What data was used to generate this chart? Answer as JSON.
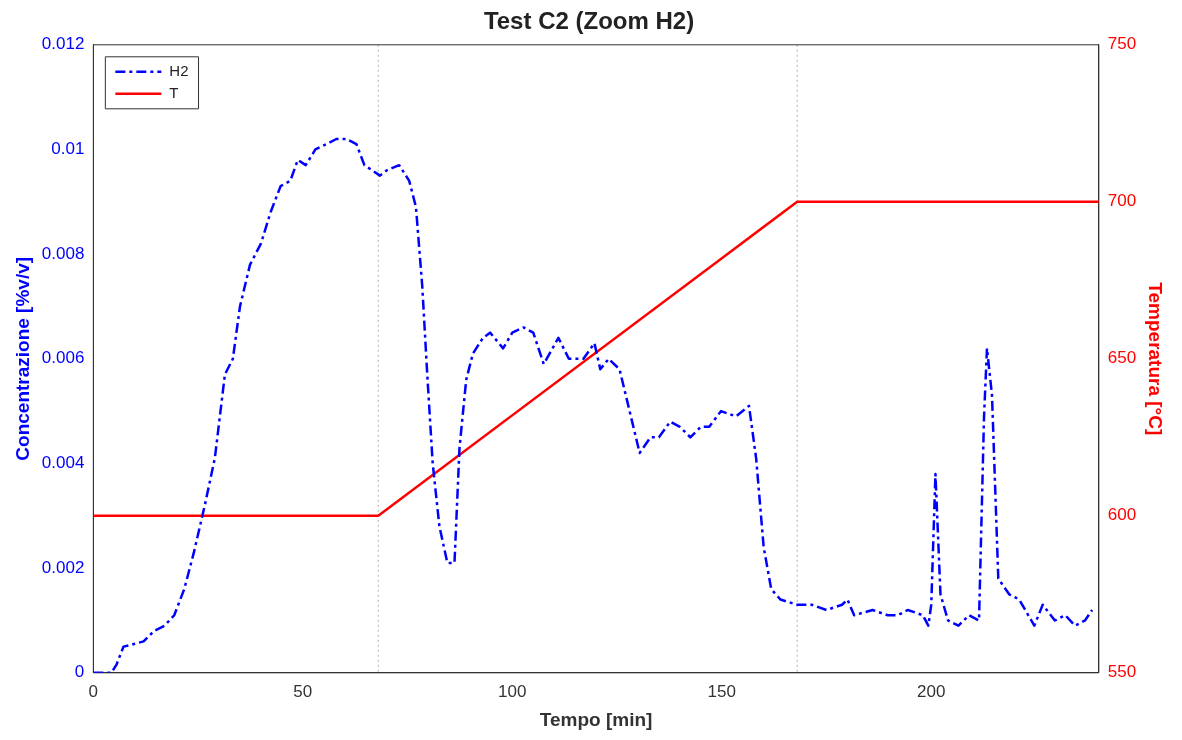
{
  "chart_data": {
    "type": "line",
    "title": "Test C2 (Zoom H2)",
    "xlabel": "Tempo [min]",
    "ylabel": "Concentrazione [%v/v]",
    "y2label": "Temperatura [°C]",
    "xlim": [
      0,
      240
    ],
    "xticks": [
      0,
      50,
      100,
      150,
      200
    ],
    "ylim": [
      0,
      0.012
    ],
    "yticks": [
      0,
      0.002,
      0.004,
      0.006,
      0.008,
      0.01,
      0.012
    ],
    "y2lim": [
      550,
      750
    ],
    "y2ticks": [
      550,
      600,
      650,
      700,
      750
    ],
    "grid": false,
    "legend": "top left",
    "marker": "none",
    "ref_lines": [
      {
        "axis": "x",
        "value": 68,
        "color": "#b0b0b0",
        "line_style": "dotted"
      },
      {
        "axis": "x",
        "value": 168,
        "color": "#b0b0b0",
        "line_style": "dotted"
      }
    ],
    "series": [
      {
        "name": "H2",
        "color": "#0000ff",
        "line_style": "dashed",
        "x": [
          0,
          4.3,
          5.5,
          7.2,
          9.7,
          12,
          14.5,
          17,
          19.3,
          21.7,
          24,
          26.6,
          29,
          31.4,
          33.3,
          35,
          37.4,
          40,
          42.3,
          44.7,
          47,
          48.8,
          50.7,
          53,
          55.6,
          58,
          60.4,
          62.8,
          64.7,
          68.4,
          70,
          73,
          75.4,
          77,
          78.5,
          79.7,
          81,
          82.6,
          84.5,
          86.2,
          87.4,
          89,
          90.6,
          93,
          94.7,
          97.8,
          100,
          102.7,
          105,
          107.5,
          111,
          113.5,
          117,
          119.6,
          121,
          123,
          125.6,
          128,
          130.4,
          133,
          135,
          137.7,
          140,
          142.5,
          145,
          147,
          149.8,
          153.4,
          156.5,
          158.2,
          160,
          161.8,
          164,
          168,
          171.5,
          175,
          178.7,
          180,
          181.6,
          186,
          189.6,
          192,
          194.4,
          198,
          199.3,
          200,
          201,
          202.2,
          204,
          206.5,
          209,
          211.4,
          212.6,
          213.3,
          214.5,
          216,
          218.6,
          221,
          224.6,
          226.6,
          229.5,
          232,
          234.3,
          236.7,
          238.4
        ],
        "values": [
          0,
          0,
          0.00015,
          0.0005,
          0.00055,
          0.0006,
          0.0008,
          0.0009,
          0.0011,
          0.0016,
          0.0023,
          0.0032,
          0.0041,
          0.0057,
          0.006,
          0.007,
          0.0078,
          0.0082,
          0.0088,
          0.0093,
          0.0094,
          0.0098,
          0.0097,
          0.01,
          0.0101,
          0.0102,
          0.0102,
          0.0101,
          0.0097,
          0.0095,
          0.0096,
          0.0097,
          0.0094,
          0.0089,
          0.0074,
          0.0057,
          0.004,
          0.0028,
          0.0021,
          0.0021,
          0.0043,
          0.0056,
          0.0061,
          0.0064,
          0.0065,
          0.0062,
          0.0065,
          0.0066,
          0.0065,
          0.0059,
          0.0064,
          0.006,
          0.006,
          0.0063,
          0.0058,
          0.006,
          0.0058,
          0.005,
          0.0042,
          0.0045,
          0.0045,
          0.0048,
          0.0047,
          0.0045,
          0.0047,
          0.0047,
          0.005,
          0.0049,
          0.0051,
          0.0041,
          0.0024,
          0.0016,
          0.0014,
          0.0013,
          0.0013,
          0.0012,
          0.0013,
          0.0014,
          0.0011,
          0.0012,
          0.0011,
          0.0011,
          0.0012,
          0.0011,
          0.0009,
          0.0013,
          0.0038,
          0.0015,
          0.001,
          0.0009,
          0.0011,
          0.001,
          0.0049,
          0.0062,
          0.0053,
          0.0018,
          0.0015,
          0.0014,
          0.0009,
          0.0013,
          0.001,
          0.0011,
          0.0009,
          0.001,
          0.0012
        ]
      },
      {
        "name": "T",
        "color": "#ff0000",
        "axis": "y2",
        "line_style": "solid",
        "x": [
          0,
          68,
          168,
          240
        ],
        "values": [
          600,
          600,
          700,
          700
        ]
      }
    ]
  }
}
